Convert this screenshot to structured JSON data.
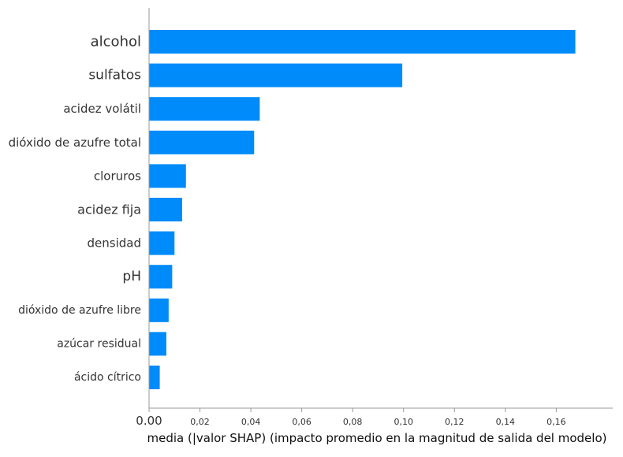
{
  "chart_data": {
    "type": "bar",
    "orientation": "horizontal",
    "categories": [
      "alcohol",
      "sulfatos",
      "acidez volátil",
      "dióxido de azufre total",
      "cloruros",
      "acidez fija",
      "densidad",
      "pH",
      "dióxido de azufre libre",
      "azúcar residual",
      "ácido cítrico"
    ],
    "values": [
      0.1675,
      0.0995,
      0.0435,
      0.0413,
      0.0145,
      0.013,
      0.01,
      0.0091,
      0.0077,
      0.0068,
      0.0042
    ],
    "xlabel": "media (|valor SHAP) (impacto promedio en la magnitud de salida del modelo)",
    "ylabel": "",
    "title": "",
    "xlim": [
      0,
      0.176
    ],
    "xticks": [
      0.0,
      0.02,
      0.04,
      0.06,
      0.08,
      0.1,
      0.12,
      0.14,
      0.16
    ],
    "xtick_labels": [
      "0.00",
      "0,02",
      "0,04",
      "0,06",
      "0,08",
      "0,10",
      "0,12",
      "0,14",
      "0,16"
    ],
    "bar_color": "#008bfb",
    "grid": false
  }
}
